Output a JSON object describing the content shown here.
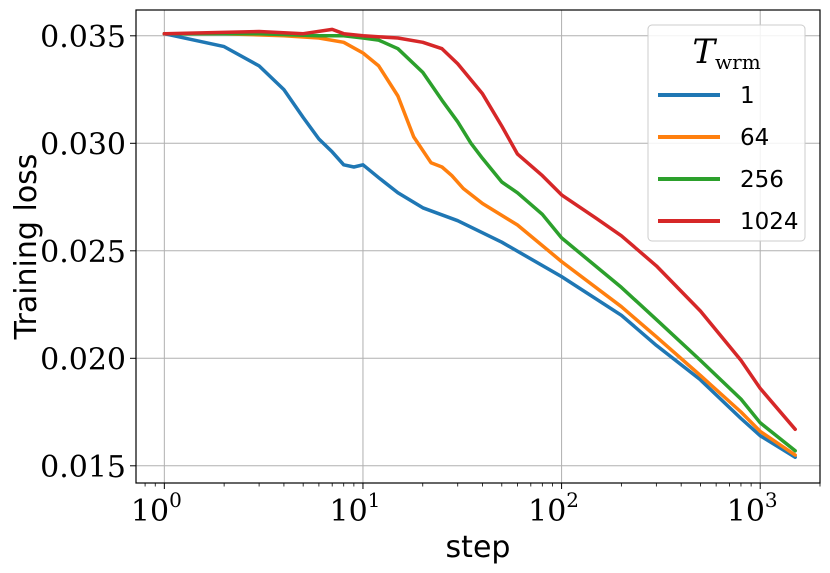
{
  "chart_data": {
    "type": "line",
    "xscale": "log",
    "xlabel": "step",
    "ylabel": "Training loss",
    "xlim": [
      0.72,
      2000
    ],
    "ylim": [
      0.0142,
      0.0362
    ],
    "grid": true,
    "legend_placement": "top-right",
    "legend_title": "T",
    "legend_title_subscript": "wrm",
    "x_ticks": [
      {
        "value": 1,
        "base": "10",
        "exp": "0"
      },
      {
        "value": 10,
        "base": "10",
        "exp": "1"
      },
      {
        "value": 100,
        "base": "10",
        "exp": "2"
      },
      {
        "value": 1000,
        "base": "10",
        "exp": "3"
      }
    ],
    "y_ticks": [
      {
        "value": 0.015,
        "label": "0.015"
      },
      {
        "value": 0.02,
        "label": "0.020"
      },
      {
        "value": 0.025,
        "label": "0.025"
      },
      {
        "value": 0.03,
        "label": "0.030"
      },
      {
        "value": 0.035,
        "label": "0.035"
      }
    ],
    "series": [
      {
        "name": "1",
        "color": "#1f77b4",
        "x": [
          1,
          2,
          3,
          4,
          5,
          6,
          7,
          8,
          9,
          10,
          12,
          15,
          20,
          30,
          50,
          100,
          200,
          300,
          500,
          800,
          1000,
          1500
        ],
        "y": [
          0.0351,
          0.0345,
          0.0336,
          0.0325,
          0.0312,
          0.0302,
          0.0296,
          0.029,
          0.0289,
          0.029,
          0.0284,
          0.0277,
          0.027,
          0.0264,
          0.0254,
          0.0238,
          0.022,
          0.0206,
          0.019,
          0.0172,
          0.0164,
          0.0154
        ]
      },
      {
        "name": "64",
        "color": "#ff7f0e",
        "x": [
          1,
          2,
          4,
          6,
          8,
          10,
          12,
          15,
          18,
          22,
          25,
          28,
          32,
          40,
          60,
          100,
          200,
          300,
          500,
          800,
          1000,
          1500
        ],
        "y": [
          0.0351,
          0.0351,
          0.035,
          0.0349,
          0.0347,
          0.0342,
          0.0336,
          0.0322,
          0.0303,
          0.0291,
          0.0289,
          0.0285,
          0.0279,
          0.0272,
          0.0262,
          0.0245,
          0.0224,
          0.021,
          0.0192,
          0.0175,
          0.0166,
          0.0155
        ]
      },
      {
        "name": "256",
        "color": "#2ca02c",
        "x": [
          1,
          3,
          6,
          8,
          10,
          12,
          15,
          20,
          25,
          30,
          35,
          40,
          50,
          60,
          80,
          100,
          200,
          300,
          500,
          800,
          1000,
          1500
        ],
        "y": [
          0.0351,
          0.0351,
          0.035,
          0.035,
          0.0349,
          0.0348,
          0.0344,
          0.0333,
          0.032,
          0.031,
          0.03,
          0.0293,
          0.0282,
          0.0277,
          0.0267,
          0.0256,
          0.0233,
          0.0218,
          0.0199,
          0.0181,
          0.017,
          0.0157
        ]
      },
      {
        "name": "1024",
        "color": "#d62728",
        "x": [
          1,
          3,
          5,
          7,
          8,
          10,
          15,
          20,
          25,
          30,
          40,
          50,
          60,
          80,
          100,
          150,
          200,
          300,
          500,
          800,
          1000,
          1500
        ],
        "y": [
          0.0351,
          0.0352,
          0.0351,
          0.0353,
          0.0351,
          0.035,
          0.0349,
          0.0347,
          0.0344,
          0.0337,
          0.0323,
          0.0308,
          0.0295,
          0.0285,
          0.0276,
          0.0265,
          0.0257,
          0.0243,
          0.0222,
          0.0199,
          0.0186,
          0.0167
        ]
      }
    ]
  }
}
